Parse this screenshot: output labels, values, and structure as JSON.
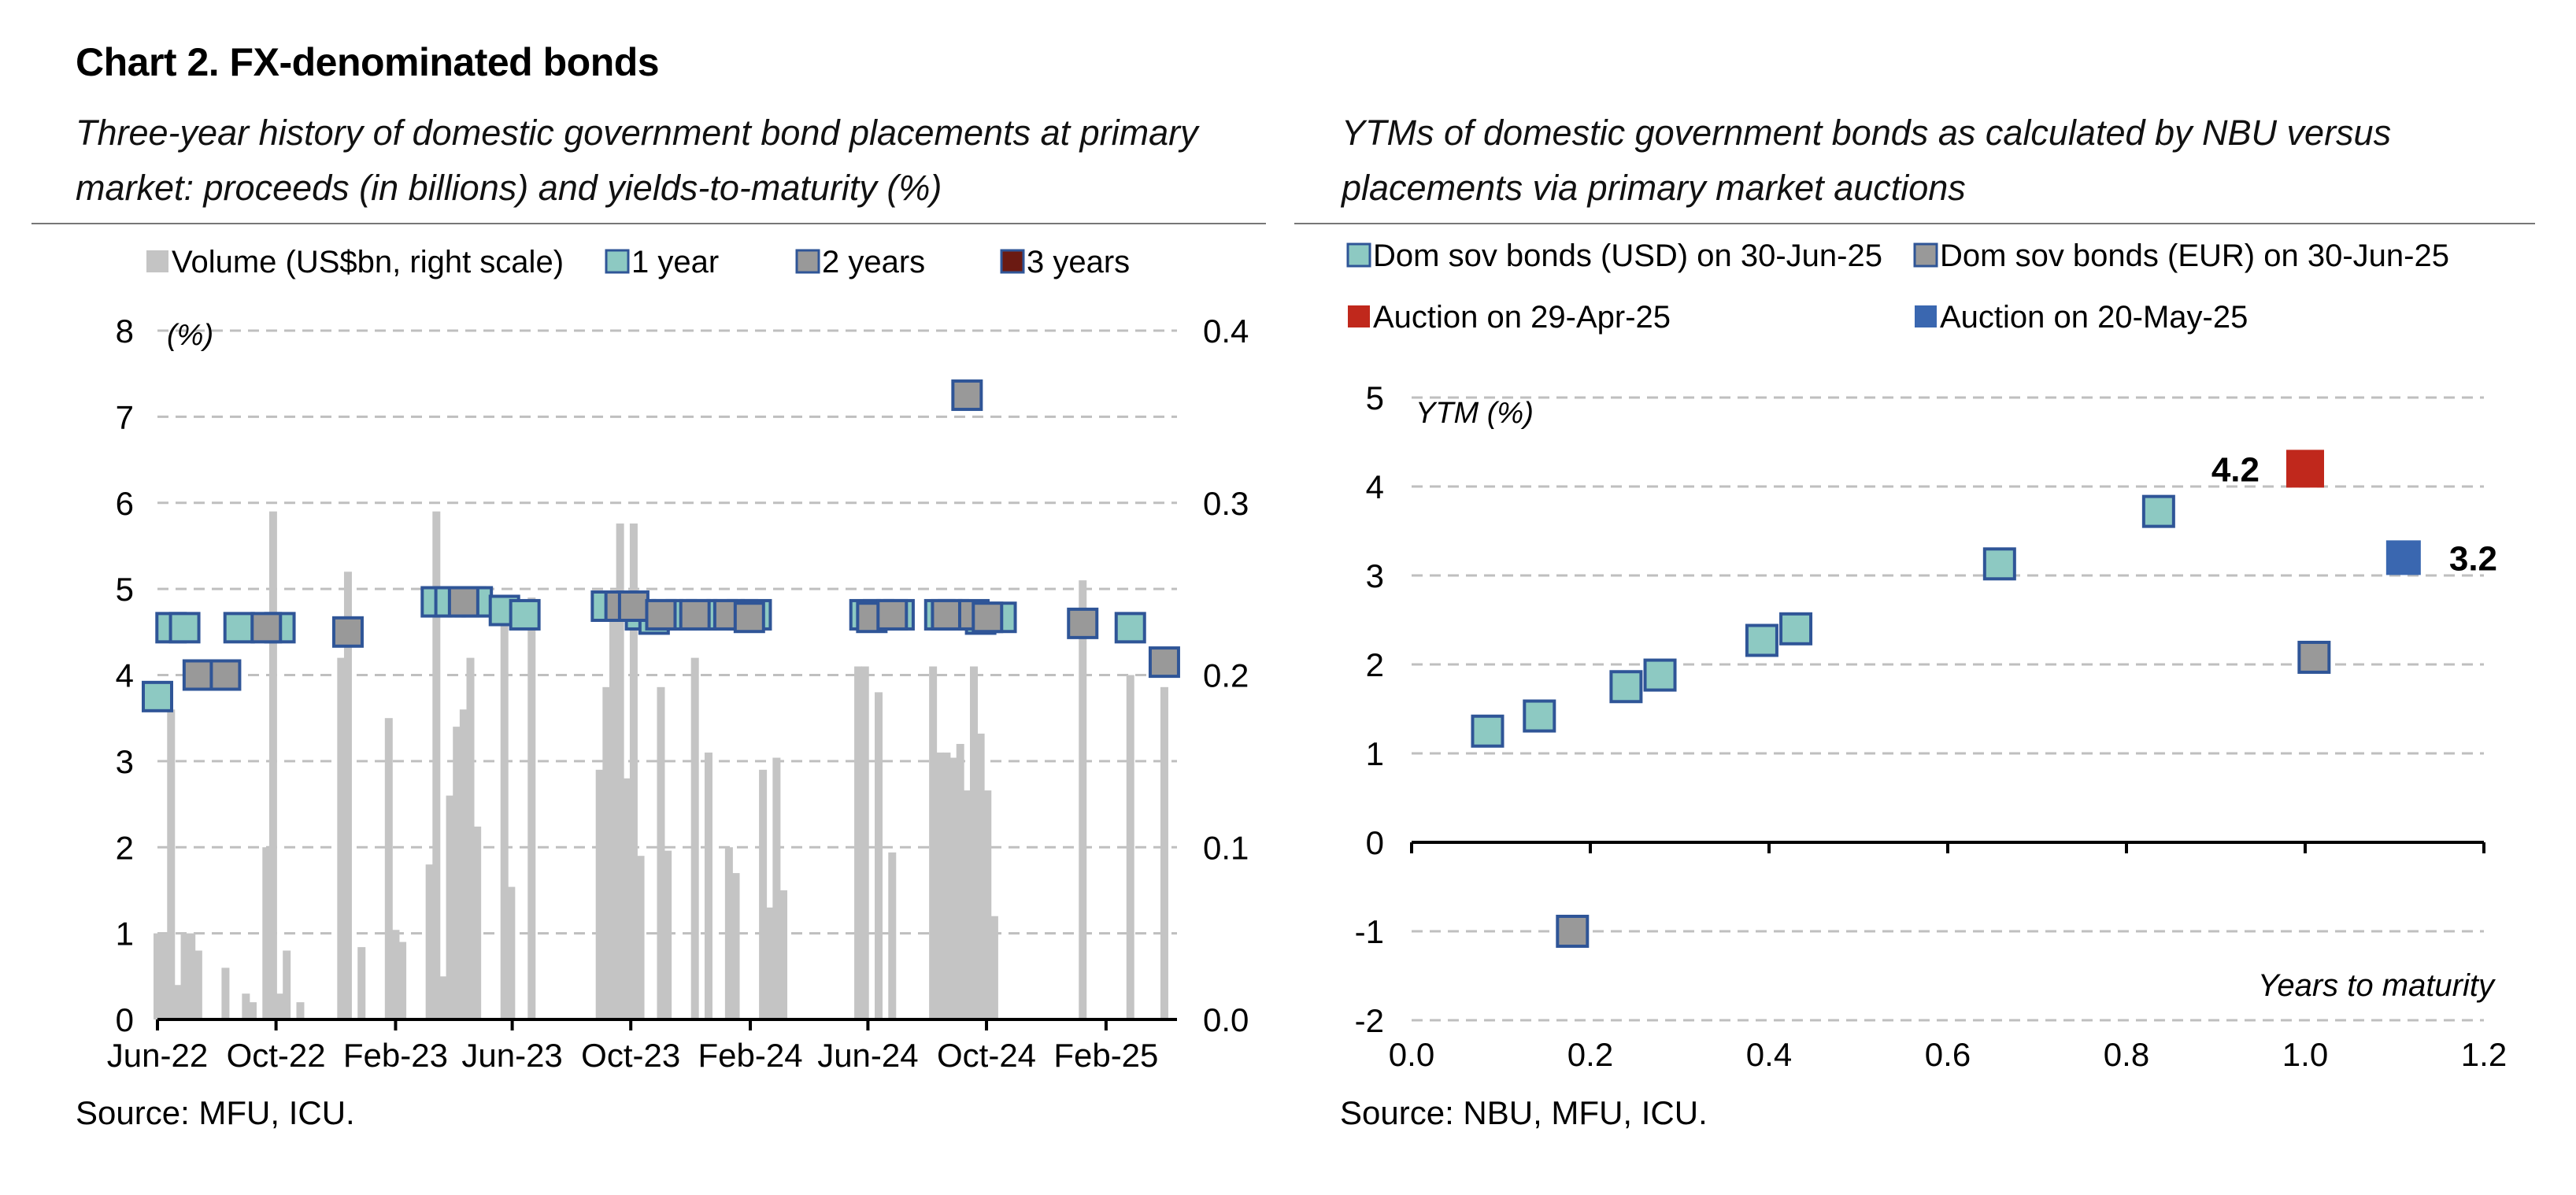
{
  "page": {
    "title": "Chart 2. FX-denominated bonds",
    "left_subtitle": "Three-year history of domestic government bond placements at primary market: proceeds (in billions) and yields-to-maturity (%)",
    "right_subtitle": "YTMs of domestic government bonds as calculated by NBU versus placements via primary market auctions",
    "left_source": "Source: MFU, ICU.",
    "right_source": "Source: NBU, MFU, ICU."
  },
  "colors": {
    "volume_bar": "#c4c4c4",
    "teal_fill": "#8dc9c2",
    "gray_fill": "#999999",
    "marker_border": "#2f5597",
    "three_years": "#6b1a12",
    "auction_apr": "#c0281c",
    "auction_may": "#3a67b0",
    "grid": "#bfbfbf"
  },
  "chart_data": [
    {
      "type": "bar",
      "subtype": "bar+scatter (dual axis)",
      "legend": [
        "Volume (US$bn, right scale)",
        "1 year",
        "2 years",
        "3 years"
      ],
      "legend_placement": "top",
      "ylabel": "(%)",
      "ylim": [
        0,
        8
      ],
      "y_ticks": [
        "0",
        "1",
        "2",
        "3",
        "4",
        "5",
        "6",
        "7",
        "8"
      ],
      "y2lim": [
        0,
        0.4
      ],
      "y2_ticks": [
        "0.0",
        "0.1",
        "0.2",
        "0.3",
        "0.4"
      ],
      "x_range": [
        "2022-06-01",
        "2025-04-15"
      ],
      "x_tick_labels": [
        {
          "date": "2022-06-01",
          "label": "Jun-22"
        },
        {
          "date": "2022-10-01",
          "label": "Oct-22"
        },
        {
          "date": "2023-02-01",
          "label": "Feb-23"
        },
        {
          "date": "2023-06-01",
          "label": "Jun-23"
        },
        {
          "date": "2023-10-01",
          "label": "Oct-23"
        },
        {
          "date": "2024-02-01",
          "label": "Feb-24"
        },
        {
          "date": "2024-06-01",
          "label": "Jun-24"
        },
        {
          "date": "2024-10-01",
          "label": "Oct-24"
        },
        {
          "date": "2025-02-01",
          "label": "Feb-25"
        }
      ],
      "grid": true,
      "volume_usd_bn": [
        {
          "date": "2022-06-01",
          "value": 0.05
        },
        {
          "date": "2022-06-08",
          "value": 0.05
        },
        {
          "date": "2022-06-15",
          "value": 0.18
        },
        {
          "date": "2022-06-22",
          "value": 0.02
        },
        {
          "date": "2022-06-29",
          "value": 0.05
        },
        {
          "date": "2022-07-06",
          "value": 0.05
        },
        {
          "date": "2022-07-13",
          "value": 0.04
        },
        {
          "date": "2022-08-10",
          "value": 0.03
        },
        {
          "date": "2022-08-31",
          "value": 0.015
        },
        {
          "date": "2022-09-07",
          "value": 0.01
        },
        {
          "date": "2022-09-21",
          "value": 0.1
        },
        {
          "date": "2022-09-28",
          "value": 0.295
        },
        {
          "date": "2022-10-05",
          "value": 0.015
        },
        {
          "date": "2022-10-12",
          "value": 0.04
        },
        {
          "date": "2022-10-26",
          "value": 0.01
        },
        {
          "date": "2022-12-07",
          "value": 0.21
        },
        {
          "date": "2022-12-14",
          "value": 0.26
        },
        {
          "date": "2022-12-28",
          "value": 0.042
        },
        {
          "date": "2023-01-25",
          "value": 0.175
        },
        {
          "date": "2023-02-01",
          "value": 0.052
        },
        {
          "date": "2023-02-08",
          "value": 0.045
        },
        {
          "date": "2023-03-08",
          "value": 0.09
        },
        {
          "date": "2023-03-15",
          "value": 0.295
        },
        {
          "date": "2023-03-22",
          "value": 0.025
        },
        {
          "date": "2023-03-29",
          "value": 0.13
        },
        {
          "date": "2023-04-05",
          "value": 0.17
        },
        {
          "date": "2023-04-12",
          "value": 0.18
        },
        {
          "date": "2023-04-19",
          "value": 0.21
        },
        {
          "date": "2023-04-26",
          "value": 0.112
        },
        {
          "date": "2023-05-24",
          "value": 0.235
        },
        {
          "date": "2023-05-31",
          "value": 0.077
        },
        {
          "date": "2023-06-21",
          "value": 0.245
        },
        {
          "date": "2023-08-30",
          "value": 0.145
        },
        {
          "date": "2023-09-06",
          "value": 0.193
        },
        {
          "date": "2023-09-13",
          "value": 0.242
        },
        {
          "date": "2023-09-20",
          "value": 0.288
        },
        {
          "date": "2023-09-27",
          "value": 0.14
        },
        {
          "date": "2023-10-04",
          "value": 0.288
        },
        {
          "date": "2023-10-11",
          "value": 0.095
        },
        {
          "date": "2023-11-01",
          "value": 0.193
        },
        {
          "date": "2023-11-08",
          "value": 0.098
        },
        {
          "date": "2023-12-06",
          "value": 0.21
        },
        {
          "date": "2023-12-20",
          "value": 0.155
        },
        {
          "date": "2024-01-10",
          "value": 0.1
        },
        {
          "date": "2024-01-17",
          "value": 0.085
        },
        {
          "date": "2024-02-14",
          "value": 0.145
        },
        {
          "date": "2024-02-21",
          "value": 0.065
        },
        {
          "date": "2024-02-28",
          "value": 0.152
        },
        {
          "date": "2024-03-06",
          "value": 0.075
        },
        {
          "date": "2024-05-22",
          "value": 0.205
        },
        {
          "date": "2024-05-29",
          "value": 0.205
        },
        {
          "date": "2024-06-12",
          "value": 0.19
        },
        {
          "date": "2024-06-26",
          "value": 0.097
        },
        {
          "date": "2024-08-07",
          "value": 0.205
        },
        {
          "date": "2024-08-14",
          "value": 0.155
        },
        {
          "date": "2024-08-21",
          "value": 0.155
        },
        {
          "date": "2024-08-28",
          "value": 0.152
        },
        {
          "date": "2024-09-04",
          "value": 0.16
        },
        {
          "date": "2024-09-11",
          "value": 0.133
        },
        {
          "date": "2024-09-18",
          "value": 0.205
        },
        {
          "date": "2024-09-25",
          "value": 0.166
        },
        {
          "date": "2024-10-02",
          "value": 0.133
        },
        {
          "date": "2024-10-09",
          "value": 0.06
        },
        {
          "date": "2025-01-08",
          "value": 0.255
        },
        {
          "date": "2025-02-26",
          "value": 0.2
        },
        {
          "date": "2025-04-02",
          "value": 0.193
        }
      ],
      "series": [
        {
          "name": "1 year",
          "points": [
            {
              "date": "2022-06-01",
              "ytm": 3.75
            },
            {
              "date": "2022-06-15",
              "ytm": 4.55
            },
            {
              "date": "2022-06-29",
              "ytm": 4.55
            },
            {
              "date": "2022-08-24",
              "ytm": 4.55
            },
            {
              "date": "2022-10-05",
              "ytm": 4.55
            },
            {
              "date": "2023-03-15",
              "ytm": 4.85
            },
            {
              "date": "2023-03-29",
              "ytm": 4.85
            },
            {
              "date": "2023-04-19",
              "ytm": 4.85
            },
            {
              "date": "2023-04-26",
              "ytm": 4.85
            },
            {
              "date": "2023-05-24",
              "ytm": 4.75
            },
            {
              "date": "2023-06-14",
              "ytm": 4.7
            },
            {
              "date": "2023-09-06",
              "ytm": 4.8
            },
            {
              "date": "2023-09-27",
              "ytm": 4.8
            },
            {
              "date": "2023-10-11",
              "ytm": 4.7
            },
            {
              "date": "2023-10-25",
              "ytm": 4.65
            },
            {
              "date": "2023-11-08",
              "ytm": 4.7
            },
            {
              "date": "2023-11-22",
              "ytm": 4.7
            },
            {
              "date": "2023-12-13",
              "ytm": 4.7
            },
            {
              "date": "2024-01-03",
              "ytm": 4.7
            },
            {
              "date": "2024-01-24",
              "ytm": 4.7
            },
            {
              "date": "2024-02-07",
              "ytm": 4.7
            },
            {
              "date": "2024-05-29",
              "ytm": 4.7
            },
            {
              "date": "2024-06-12",
              "ytm": 4.7
            },
            {
              "date": "2024-07-03",
              "ytm": 4.7
            },
            {
              "date": "2024-08-14",
              "ytm": 4.7
            },
            {
              "date": "2024-08-28",
              "ytm": 4.7
            },
            {
              "date": "2024-09-25",
              "ytm": 4.65
            },
            {
              "date": "2024-10-16",
              "ytm": 4.67
            },
            {
              "date": "2025-02-26",
              "ytm": 4.55
            }
          ]
        },
        {
          "name": "2 years",
          "points": [
            {
              "date": "2022-07-13",
              "ytm": 4.0
            },
            {
              "date": "2022-08-10",
              "ytm": 4.0
            },
            {
              "date": "2022-09-21",
              "ytm": 4.55
            },
            {
              "date": "2022-12-14",
              "ytm": 4.5
            },
            {
              "date": "2023-04-12",
              "ytm": 4.85
            },
            {
              "date": "2023-09-20",
              "ytm": 4.8
            },
            {
              "date": "2023-10-04",
              "ytm": 4.8
            },
            {
              "date": "2023-11-01",
              "ytm": 4.7
            },
            {
              "date": "2023-12-06",
              "ytm": 4.7
            },
            {
              "date": "2024-01-10",
              "ytm": 4.7
            },
            {
              "date": "2024-01-31",
              "ytm": 4.67
            },
            {
              "date": "2024-06-05",
              "ytm": 4.67
            },
            {
              "date": "2024-06-26",
              "ytm": 4.7
            },
            {
              "date": "2024-08-21",
              "ytm": 4.7
            },
            {
              "date": "2024-09-11",
              "ytm": 7.25
            },
            {
              "date": "2024-09-18",
              "ytm": 4.7
            },
            {
              "date": "2024-10-02",
              "ytm": 4.67
            },
            {
              "date": "2025-01-08",
              "ytm": 4.6
            },
            {
              "date": "2025-04-02",
              "ytm": 4.15
            }
          ]
        },
        {
          "name": "3 years",
          "points": []
        }
      ]
    },
    {
      "type": "scatter",
      "legend": [
        "Dom sov bonds (USD) on 30-Jun-25",
        "Dom sov bonds (EUR) on 30-Jun-25",
        "Auction on 29-Apr-25",
        "Auction on 20-May-25"
      ],
      "legend_placement": "top",
      "ylabel": "YTM (%)",
      "xlabel": "Years to maturity",
      "xlim": [
        0,
        1.2
      ],
      "ylim": [
        -2,
        5
      ],
      "x_ticks": [
        "0.0",
        "0.2",
        "0.4",
        "0.6",
        "0.8",
        "1.0",
        "1.2"
      ],
      "y_ticks": [
        "-2",
        "-1",
        "0",
        "1",
        "2",
        "3",
        "4",
        "5"
      ],
      "grid": true,
      "series": [
        {
          "name": "Dom sov bonds (USD) on 30-Jun-25",
          "points": [
            {
              "x": 0.085,
              "y": 1.25
            },
            {
              "x": 0.143,
              "y": 1.42
            },
            {
              "x": 0.24,
              "y": 1.75
            },
            {
              "x": 0.278,
              "y": 1.88
            },
            {
              "x": 0.392,
              "y": 2.27
            },
            {
              "x": 0.43,
              "y": 2.4
            },
            {
              "x": 0.658,
              "y": 3.13
            },
            {
              "x": 0.836,
              "y": 3.72
            }
          ]
        },
        {
          "name": "Dom sov bonds (EUR) on 30-Jun-25",
          "points": [
            {
              "x": 0.18,
              "y": -1.0
            },
            {
              "x": 1.01,
              "y": 2.08
            }
          ]
        },
        {
          "name": "Auction on 29-Apr-25",
          "points": [
            {
              "x": 1.0,
              "y": 4.2,
              "label": "4.2"
            }
          ]
        },
        {
          "name": "Auction on 20-May-25",
          "points": [
            {
              "x": 1.11,
              "y": 3.2,
              "label": "3.2"
            }
          ]
        }
      ]
    }
  ]
}
